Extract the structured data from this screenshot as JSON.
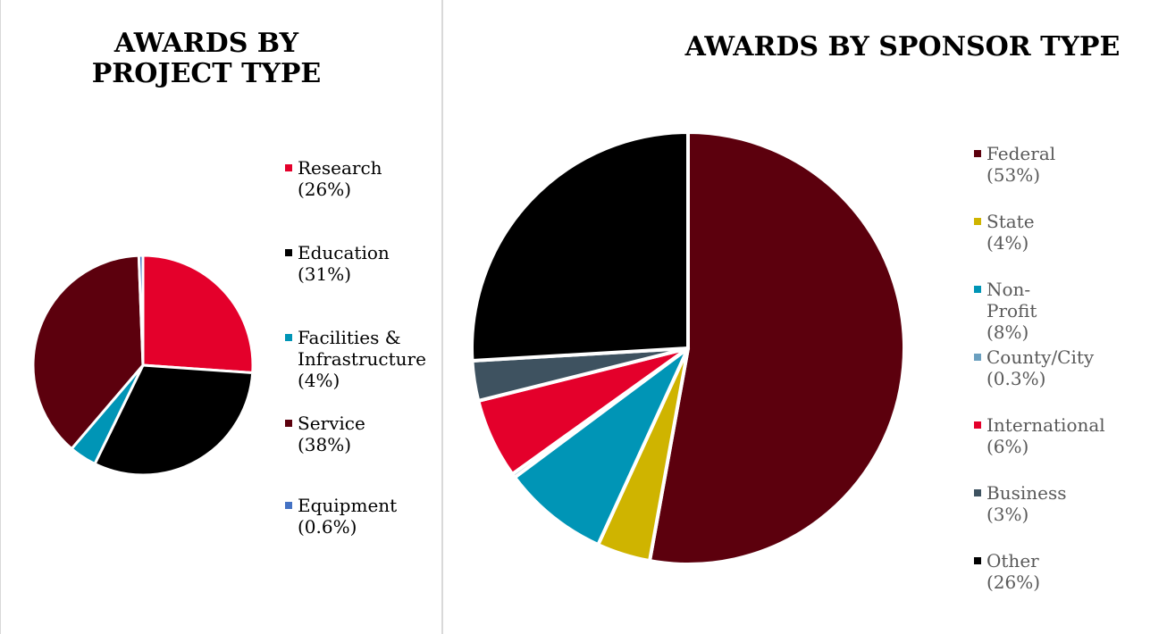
{
  "chart_data": [
    {
      "type": "pie",
      "title": "AWARDS BY PROJECT TYPE",
      "legend": "right",
      "slices": [
        {
          "name": "Research",
          "label": "Research\n(26%)",
          "value": 26,
          "color": "#e4002b"
        },
        {
          "name": "Education",
          "label": "Education\n(31%)",
          "value": 31,
          "color": "#000000"
        },
        {
          "name": "Facilities & Infrastructure",
          "label": "Facilities &\nInfrastructure\n(4%)",
          "value": 4,
          "color": "#0095b6"
        },
        {
          "name": "Service",
          "label": "Service (38%)",
          "value": 38,
          "color": "#5c000d"
        },
        {
          "name": "Equipment",
          "label": "Equipment\n(0.6%)",
          "value": 0.6,
          "color": "#4472c4"
        }
      ]
    },
    {
      "type": "pie",
      "title": "AWARDS BY SPONSOR TYPE",
      "legend": "right",
      "slices": [
        {
          "name": "Federal",
          "label": "Federal (53%)",
          "value": 53,
          "color": "#5c000d"
        },
        {
          "name": "State",
          "label": "State (4%)",
          "value": 4,
          "color": "#cfb400"
        },
        {
          "name": "Non-Profit",
          "label": "Non-Profit (8%)",
          "value": 8,
          "color": "#0095b6"
        },
        {
          "name": "County/City",
          "label": "County/City\n(0.3%)",
          "value": 0.3,
          "color": "#6a9fbf"
        },
        {
          "name": "International",
          "label": "International\n(6%)",
          "value": 6,
          "color": "#e4002b"
        },
        {
          "name": "Business",
          "label": "Business (3%)",
          "value": 3,
          "color": "#3e5260"
        },
        {
          "name": "Other",
          "label": "Other (26%)",
          "value": 26,
          "color": "#000000"
        }
      ]
    }
  ]
}
